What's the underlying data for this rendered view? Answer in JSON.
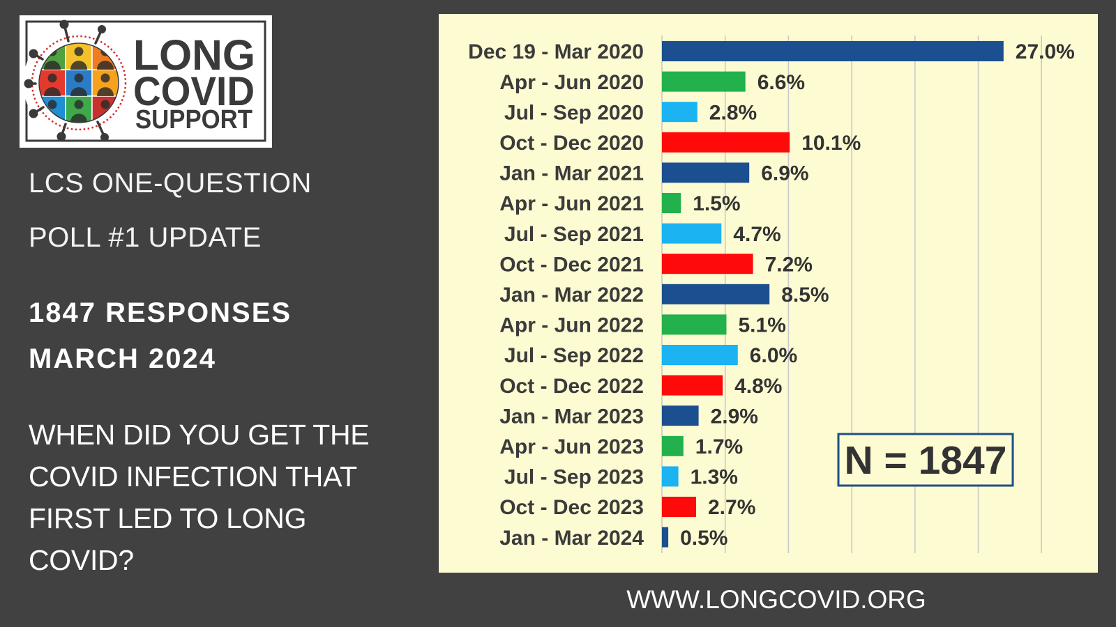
{
  "logo": {
    "line1": "LONG",
    "line2": "COVID",
    "line3": "SUPPORT"
  },
  "header": {
    "line1": "LCS ONE-QUESTION",
    "line2": "POLL #1 UPDATE"
  },
  "stats": {
    "responses": "1847 RESPONSES",
    "date": "MARCH 2024"
  },
  "question": {
    "lines": [
      "WHEN DID YOU GET THE",
      "COVID INFECTION THAT",
      "FIRST LED TO LONG",
      "COVID?"
    ]
  },
  "footer": {
    "url": "WWW.LONGCOVID.ORG"
  },
  "icons": {
    "logo_emblem": "virus-community-emblem-icon"
  },
  "colors": {
    "page_background": "#414141",
    "panel_background": "#fdfbd2",
    "logo_text": "#3a3a3a",
    "annotation_border": "#1f4e86"
  },
  "chart_data": {
    "type": "bar",
    "horizontal": true,
    "title": "",
    "xlabel": "",
    "ylabel": "",
    "xlim": [
      0,
      30
    ],
    "grid": true,
    "grid_step": 5,
    "categories": [
      "Dec 19 - Mar 2020",
      "Apr - Jun 2020",
      "Jul - Sep 2020",
      "Oct - Dec 2020",
      "Jan - Mar 2021",
      "Apr - Jun 2021",
      "Jul - Sep 2021",
      "Oct - Dec 2021",
      "Jan - Mar 2022",
      "Apr - Jun 2022",
      "Jul - Sep 2022",
      "Oct - Dec 2022",
      "Jan - Mar 2023",
      "Apr - Jun 2023",
      "Jul - Sep 2023",
      "Oct - Dec 2023",
      "Jan - Mar 2024"
    ],
    "values": [
      27.0,
      6.6,
      2.8,
      10.1,
      6.9,
      1.5,
      4.7,
      7.2,
      8.5,
      5.1,
      6.0,
      4.8,
      2.9,
      1.7,
      1.3,
      2.7,
      0.5
    ],
    "value_labels": [
      "27.0%",
      "6.6%",
      "2.8%",
      "10.1%",
      "6.9%",
      "1.5%",
      "4.7%",
      "7.2%",
      "8.5%",
      "5.1%",
      "6.0%",
      "4.8%",
      "2.9%",
      "1.7%",
      "1.3%",
      "2.7%",
      "0.5%"
    ],
    "bar_colors": [
      "#1c4f8f",
      "#22b14c",
      "#1bb3f2",
      "#ff0a0a",
      "#1c4f8f",
      "#22b14c",
      "#1bb3f2",
      "#ff0a0a",
      "#1c4f8f",
      "#22b14c",
      "#1bb3f2",
      "#ff0a0a",
      "#1c4f8f",
      "#22b14c",
      "#1bb3f2",
      "#ff0a0a",
      "#1c4f8f"
    ],
    "annotation": "N = 1847"
  }
}
